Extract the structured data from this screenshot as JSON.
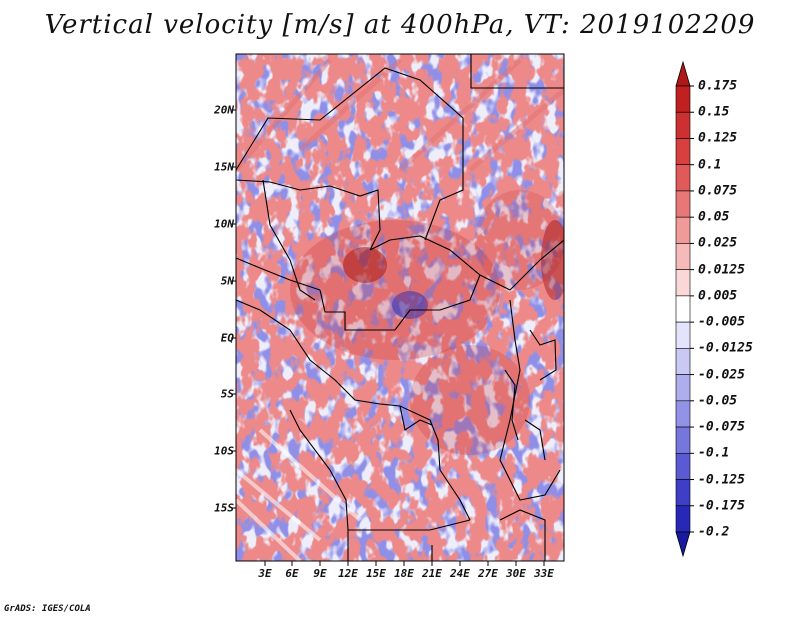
{
  "title": "Vertical velocity [m/s] at 400hPa, VT: 2019102209",
  "footer": "GrADS: IGES/COLA",
  "map": {
    "lat_labels": [
      "20N",
      "15N",
      "10N",
      "5N",
      "EQ",
      "5S",
      "10S",
      "15S"
    ],
    "lon_labels": [
      "3E",
      "6E",
      "9E",
      "12E",
      "15E",
      "18E",
      "21E",
      "24E",
      "27E",
      "30E",
      "33E"
    ]
  },
  "colorbar": {
    "labels": [
      "0.175",
      "0.15",
      "0.125",
      "0.1",
      "0.075",
      "0.05",
      "0.025",
      "0.0125",
      "0.005",
      "-0.005",
      "-0.0125",
      "-0.025",
      "-0.05",
      "-0.075",
      "-0.1",
      "-0.125",
      "-0.175",
      "-0.2"
    ],
    "colors": [
      "#b01818",
      "#c02020",
      "#cc3030",
      "#d84040",
      "#e05a5a",
      "#e87878",
      "#f09a9a",
      "#f6baba",
      "#fbd8d8",
      "#ffffff",
      "#e3e3fb",
      "#c9c9f4",
      "#aeaeed",
      "#9292e6",
      "#7676dd",
      "#5a5ad2",
      "#3e3ec6",
      "#2828b8",
      "#1a1aa0"
    ]
  }
}
